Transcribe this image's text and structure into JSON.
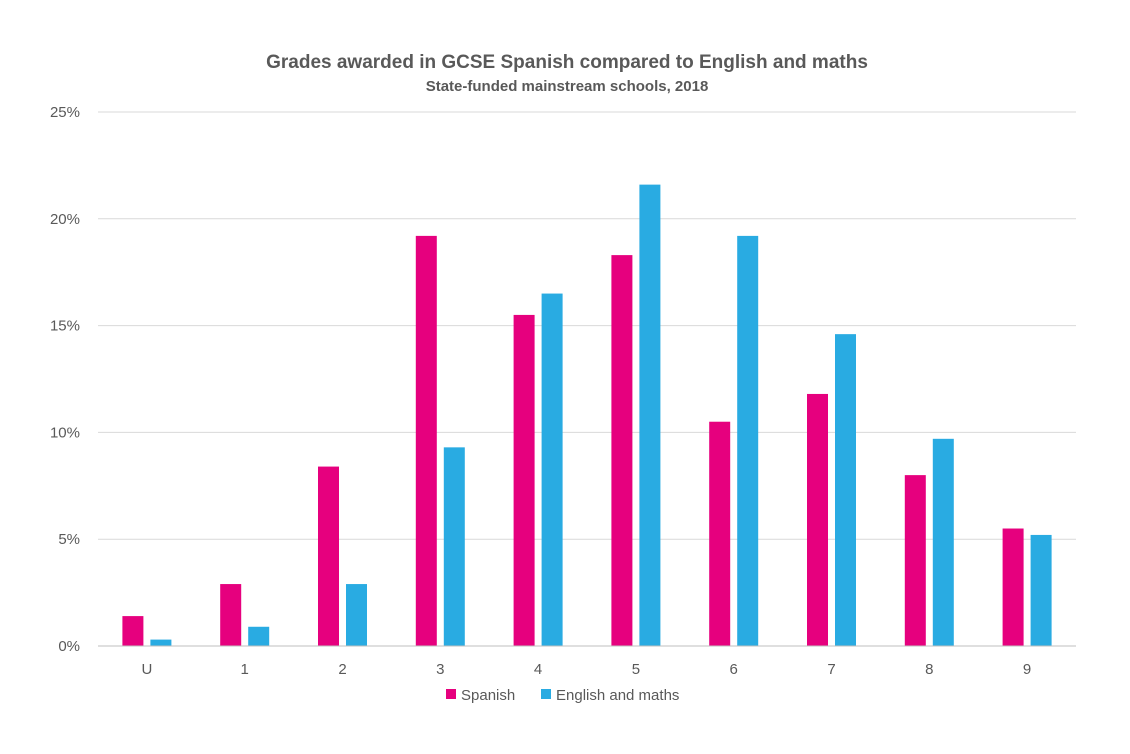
{
  "chart_data": {
    "type": "bar",
    "title": "Grades awarded in GCSE Spanish compared to English and maths",
    "subtitle": "State-funded mainstream schools, 2018",
    "categories": [
      "U",
      "1",
      "2",
      "3",
      "4",
      "5",
      "6",
      "7",
      "8",
      "9"
    ],
    "series": [
      {
        "name": "Spanish",
        "color": "#e6007e",
        "values": [
          1.4,
          2.9,
          8.4,
          19.2,
          15.5,
          18.3,
          10.5,
          11.8,
          8.0,
          5.5
        ]
      },
      {
        "name": "English and maths",
        "color": "#29abe2",
        "values": [
          0.3,
          0.9,
          2.9,
          9.3,
          16.5,
          21.6,
          19.2,
          14.6,
          9.7,
          5.2
        ]
      }
    ],
    "yticks": [
      "0%",
      "5%",
      "10%",
      "15%",
      "20%",
      "25%"
    ],
    "ylim": [
      0,
      25
    ],
    "grid": true,
    "legend": "bottom"
  }
}
